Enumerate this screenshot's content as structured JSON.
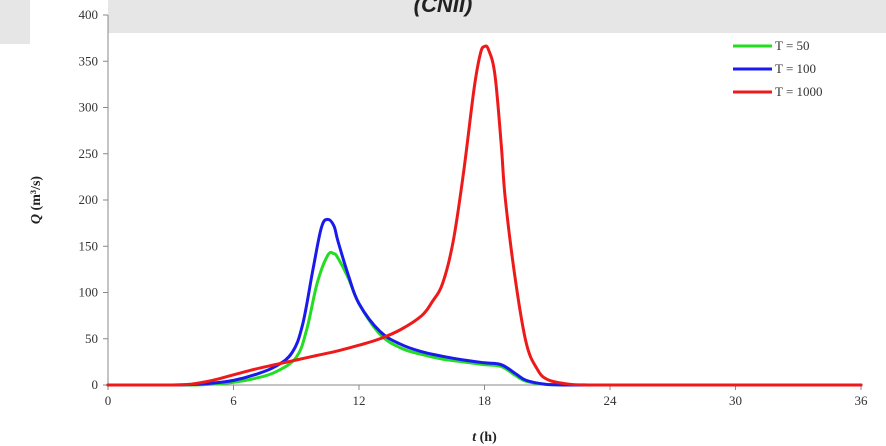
{
  "header": {
    "fragment_title": "(CNII)"
  },
  "chart_data": {
    "type": "line",
    "title": "",
    "xlabel_var": "t",
    "xlabel_unit": "(h)",
    "ylabel_var": "Q",
    "ylabel_unit": "(m³/s)",
    "xlim": [
      0,
      36
    ],
    "ylim": [
      0,
      400
    ],
    "x_ticks": [
      0,
      6,
      12,
      18,
      24,
      30,
      36
    ],
    "y_ticks": [
      0,
      50,
      100,
      150,
      200,
      250,
      300,
      350,
      400
    ],
    "grid": false,
    "legend_position": "top-right",
    "series": [
      {
        "name": "T = 50",
        "color": "#22dd22",
        "x": [
          0,
          3,
          4,
          5,
          6,
          7,
          8,
          9,
          9.5,
          10,
          10.5,
          10.8,
          11,
          11.5,
          12,
          13,
          14,
          15,
          16,
          17,
          18,
          18.8,
          19.5,
          20,
          21,
          22,
          23,
          24,
          36
        ],
        "y": [
          0,
          0,
          0,
          1,
          3,
          7,
          14,
          30,
          60,
          110,
          140,
          142,
          137,
          115,
          88,
          55,
          40,
          33,
          28,
          25,
          22,
          20,
          10,
          4,
          0.5,
          0,
          0,
          0,
          0
        ]
      },
      {
        "name": "T = 100",
        "color": "#1a1aee",
        "x": [
          0,
          3,
          4,
          5,
          6,
          7,
          8,
          8.8,
          9.3,
          9.8,
          10.2,
          10.5,
          10.8,
          11,
          11.5,
          12,
          13,
          14,
          15,
          16,
          17,
          18,
          18.8,
          19.5,
          20,
          21,
          22,
          23,
          24,
          36
        ],
        "y": [
          0,
          0,
          0.5,
          2,
          5,
          11,
          20,
          35,
          65,
          125,
          170,
          179,
          172,
          155,
          118,
          88,
          58,
          44,
          36,
          31,
          27,
          24,
          22,
          12,
          5,
          0.5,
          0,
          0,
          0,
          0
        ]
      },
      {
        "name": "T = 1000",
        "color": "#ee1a1a",
        "x": [
          0,
          3,
          4,
          5,
          6,
          7,
          8,
          9,
          10,
          11,
          12,
          13,
          14,
          15,
          15.5,
          16,
          16.5,
          17,
          17.5,
          17.8,
          18,
          18.2,
          18.5,
          18.8,
          19,
          19.5,
          20,
          20.5,
          21,
          22,
          23,
          24,
          36
        ],
        "y": [
          0,
          0,
          1,
          5,
          11,
          17,
          22,
          27,
          32,
          37,
          43,
          50,
          60,
          75,
          90,
          110,
          155,
          230,
          320,
          358,
          366,
          362,
          335,
          260,
          200,
          110,
          45,
          18,
          6,
          1,
          0,
          0,
          0
        ]
      }
    ]
  }
}
